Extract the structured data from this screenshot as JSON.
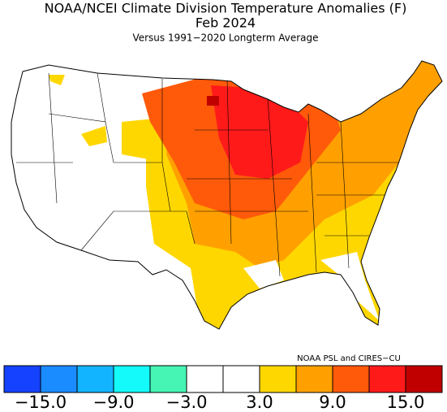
{
  "title": "NOAA/NCEI Climate Division Temperature Anomalies (F)",
  "subtitle": "Feb 2024",
  "note": "Versus 1991−2020 Longterm Average",
  "credit": "NOAA PSL and CIRES−CU",
  "colorbar": {
    "colors": [
      "#1442ff",
      "#1a8cff",
      "#12b4ff",
      "#14fafa",
      "#46f5b4",
      "#ffffff",
      "#ffffff",
      "#ffd700",
      "#ffa000",
      "#ff5a0a",
      "#ff1a1a",
      "#c00000"
    ],
    "xlim": [
      -18,
      18
    ],
    "xticks": [
      {
        "value": -15,
        "label": "−15.0"
      },
      {
        "value": -9,
        "label": "−9.0"
      },
      {
        "value": -3,
        "label": "−3.0"
      },
      {
        "value": 3,
        "label": "3.0"
      },
      {
        "value": 9,
        "label": "9.0"
      },
      {
        "value": 15,
        "label": "15.0"
      }
    ]
  }
}
